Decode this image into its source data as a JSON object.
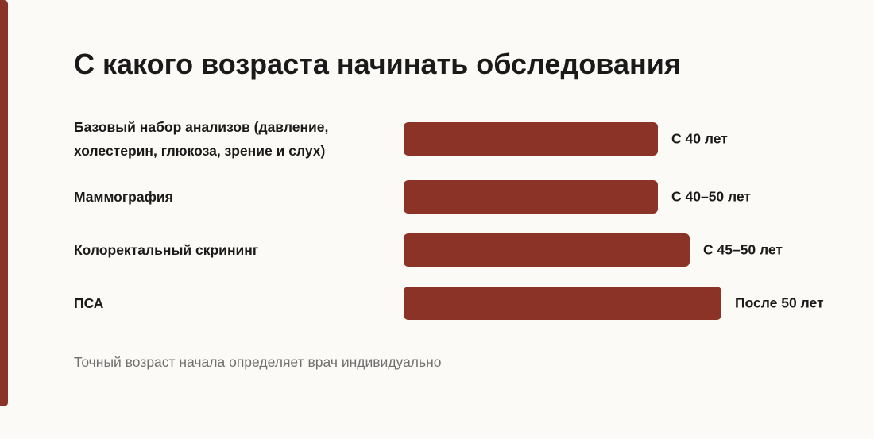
{
  "chart_data": {
    "type": "bar",
    "orientation": "horizontal",
    "title": "С какого возраста начинать обследования",
    "categories": [
      "Базовый набор анализов (давление, холестерин, глюкоза, зрение и слух)",
      "Маммография",
      "Колоректальный скрининг",
      "ПСА"
    ],
    "values": [
      40,
      40,
      45,
      50
    ],
    "value_labels": [
      "С 40 лет",
      "С 40–50 лет",
      "С 45–50 лет",
      "После 50 лет"
    ],
    "color": "#8b3326",
    "footnote": "Точный возраст начала определяет врач индивидуально"
  }
}
